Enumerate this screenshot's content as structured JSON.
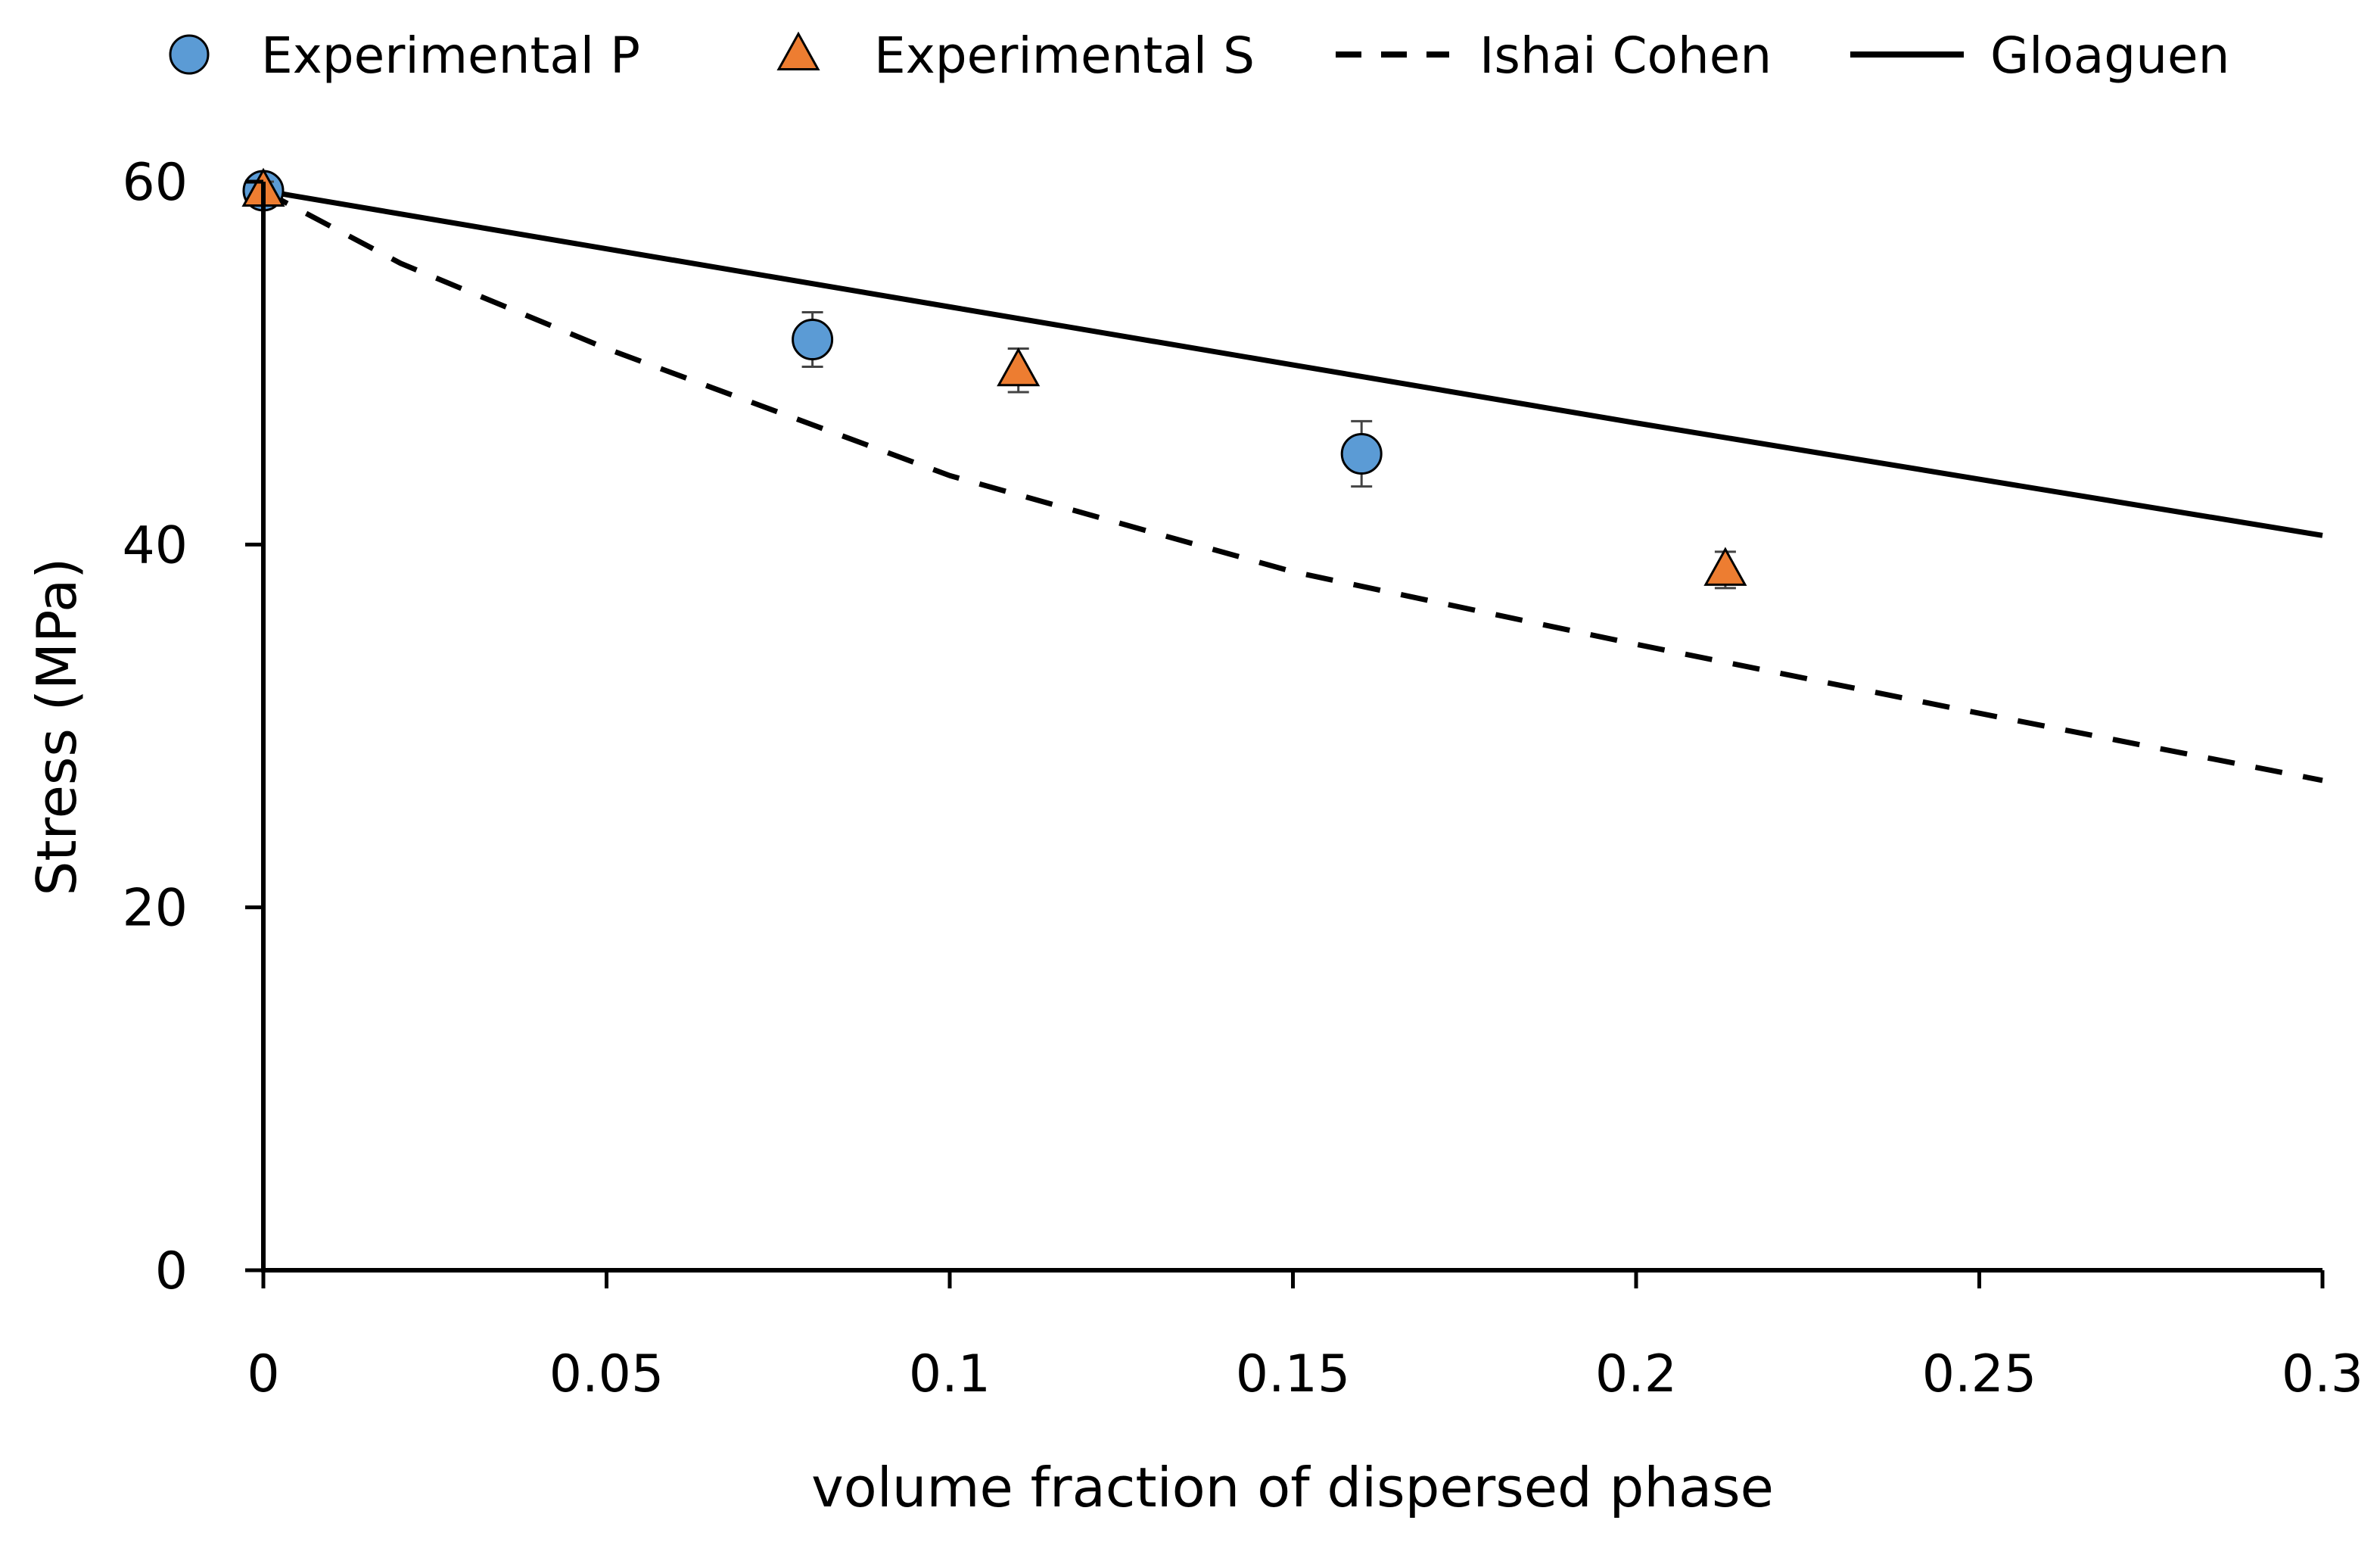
{
  "chart_data": {
    "type": "scatter",
    "title": "",
    "xlabel": "volume fraction of dispersed phase",
    "ylabel": "Stress (MPa)",
    "xlim": [
      0,
      0.3
    ],
    "ylim": [
      0,
      60
    ],
    "x_ticks": [
      0,
      0.05,
      0.1,
      0.15,
      0.2,
      0.25,
      0.3
    ],
    "x_tick_labels": [
      "0",
      "0.05",
      "0.1",
      "0.15",
      "0.2",
      "0.25",
      "0.3"
    ],
    "y_ticks": [
      0,
      20,
      40,
      60
    ],
    "y_tick_labels": [
      "0",
      "20",
      "40",
      "60"
    ],
    "grid": false,
    "legend_position": "top",
    "series": [
      {
        "name": "Experimental P",
        "kind": "markers",
        "marker": "circle",
        "color": "#5B9BD5",
        "x": [
          0,
          0.08,
          0.16
        ],
        "y": [
          59.5,
          51.3,
          45.0
        ],
        "error": [
          0.6,
          1.5,
          1.8
        ]
      },
      {
        "name": "Experimental S",
        "kind": "markers",
        "marker": "triangle",
        "color": "#ED7D31",
        "x": [
          0,
          0.11,
          0.213
        ],
        "y": [
          59.5,
          49.6,
          38.6
        ],
        "error": [
          0.5,
          1.2,
          1.0
        ]
      },
      {
        "name": "Ishai Cohen",
        "kind": "line",
        "style": "dashed",
        "color": "#000000",
        "x": [
          0,
          0.02,
          0.05,
          0.08,
          0.1,
          0.15,
          0.2,
          0.25,
          0.3
        ],
        "y": [
          59.5,
          55.5,
          50.8,
          46.6,
          43.8,
          38.5,
          34.5,
          30.7,
          27.0
        ]
      },
      {
        "name": "Gloaguen",
        "kind": "line",
        "style": "solid",
        "color": "#000000",
        "x": [
          0,
          0.05,
          0.1,
          0.15,
          0.2,
          0.25,
          0.3
        ],
        "y": [
          59.5,
          56.3,
          53.1,
          49.9,
          46.7,
          43.6,
          40.5
        ]
      }
    ]
  }
}
